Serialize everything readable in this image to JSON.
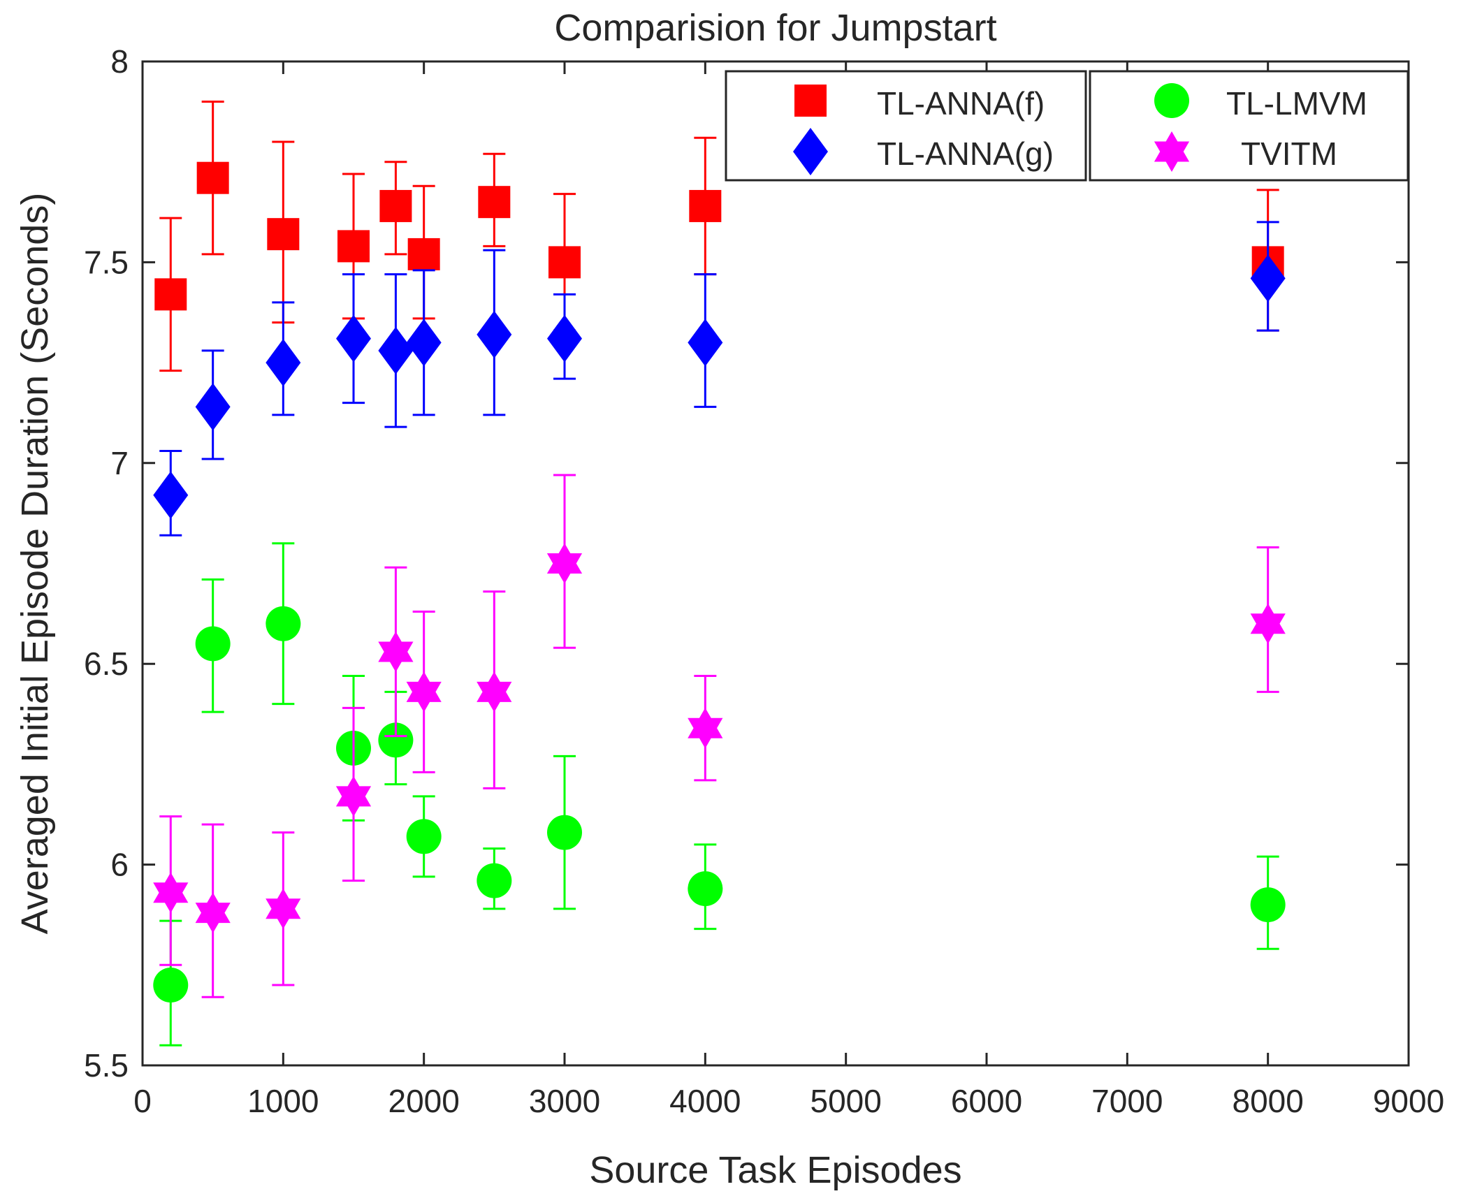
{
  "chart_data": {
    "type": "scatter",
    "title": "Comparision for Jumpstart",
    "xlabel": "Source Task Episodes",
    "ylabel": "Averaged Initial Episode Duration (Seconds)",
    "xlim": [
      0,
      9000
    ],
    "ylim": [
      5.5,
      8
    ],
    "xticks": [
      0,
      1000,
      2000,
      3000,
      4000,
      5000,
      6000,
      7000,
      8000,
      9000
    ],
    "xtick_labels": [
      "0",
      "1000",
      "2000",
      "3000",
      "4000",
      "5000",
      "6000",
      "7000",
      "8000",
      "9000"
    ],
    "yticks": [
      5.5,
      6,
      6.5,
      7,
      7.5,
      8
    ],
    "ytick_labels": [
      "5.5",
      "6",
      "6.5",
      "7",
      "7.5",
      "8"
    ],
    "grid": false,
    "legend_position": "top-right",
    "series": [
      {
        "name": "TL-ANNA(f)",
        "marker": "square",
        "color": "#ff0000",
        "x": [
          200,
          500,
          1000,
          1500,
          1800,
          2000,
          2500,
          3000,
          4000,
          8000
        ],
        "y": [
          7.42,
          7.71,
          7.57,
          7.54,
          7.64,
          7.52,
          7.65,
          7.5,
          7.64,
          7.5
        ],
        "err_low": [
          7.23,
          7.52,
          7.35,
          7.36,
          7.52,
          7.36,
          7.54,
          7.33,
          7.47,
          7.33
        ],
        "err_high": [
          7.61,
          7.9,
          7.8,
          7.72,
          7.75,
          7.69,
          7.77,
          7.67,
          7.81,
          7.68
        ]
      },
      {
        "name": "TL-ANNA(g)",
        "marker": "diamond",
        "color": "#0000ff",
        "x": [
          200,
          500,
          1000,
          1500,
          1800,
          2000,
          2500,
          3000,
          4000,
          8000
        ],
        "y": [
          6.92,
          7.14,
          7.25,
          7.31,
          7.28,
          7.3,
          7.32,
          7.31,
          7.3,
          7.46
        ],
        "err_low": [
          6.82,
          7.01,
          7.12,
          7.15,
          7.09,
          7.12,
          7.12,
          7.21,
          7.14,
          7.33
        ],
        "err_high": [
          7.03,
          7.28,
          7.4,
          7.47,
          7.47,
          7.48,
          7.53,
          7.42,
          7.47,
          7.6
        ]
      },
      {
        "name": "TL-LMVM",
        "marker": "circle",
        "color": "#00ff00",
        "x": [
          200,
          500,
          1000,
          1500,
          1800,
          2000,
          2500,
          3000,
          4000,
          8000
        ],
        "y": [
          5.7,
          6.55,
          6.6,
          6.29,
          6.31,
          6.07,
          5.96,
          6.08,
          5.94,
          5.9
        ],
        "err_low": [
          5.55,
          6.38,
          6.4,
          6.11,
          6.2,
          5.97,
          5.89,
          5.89,
          5.84,
          5.79
        ],
        "err_high": [
          5.86,
          6.71,
          6.8,
          6.47,
          6.43,
          6.17,
          6.04,
          6.27,
          6.05,
          6.02
        ]
      },
      {
        "name": "TVITM",
        "marker": "hexagram",
        "color": "#ff00ff",
        "x": [
          200,
          500,
          1000,
          1500,
          1800,
          2000,
          2500,
          3000,
          4000,
          8000
        ],
        "y": [
          5.93,
          5.88,
          5.89,
          6.17,
          6.53,
          6.43,
          6.43,
          6.75,
          6.34,
          6.6
        ],
        "err_low": [
          5.75,
          5.67,
          5.7,
          5.96,
          6.32,
          6.23,
          6.19,
          6.54,
          6.21,
          6.43
        ],
        "err_high": [
          6.12,
          6.1,
          6.08,
          6.39,
          6.74,
          6.63,
          6.68,
          6.97,
          6.47,
          6.79
        ]
      }
    ],
    "legend": {
      "box_left": [
        "TL-ANNA(f)",
        "TL-ANNA(g)"
      ],
      "box_right": [
        "TL-LMVM",
        "TVITM"
      ]
    }
  }
}
